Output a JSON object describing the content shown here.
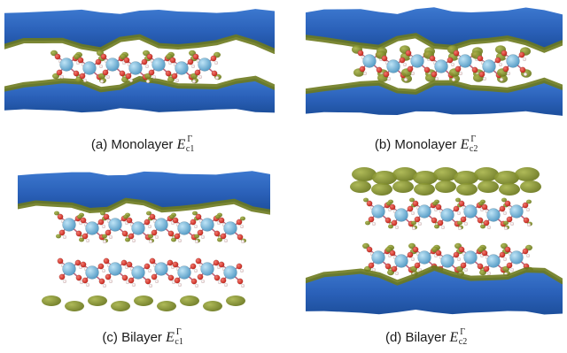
{
  "figure": {
    "panels": [
      {
        "id": "a",
        "label": "(a)",
        "system": "Monolayer",
        "symbol": "E",
        "subscript": "c1",
        "superscript": "Γ"
      },
      {
        "id": "b",
        "label": "(b)",
        "system": "Monolayer",
        "symbol": "E",
        "subscript": "c2",
        "superscript": "Γ"
      },
      {
        "id": "c",
        "label": "(c)",
        "system": "Bilayer",
        "symbol": "E",
        "subscript": "c1",
        "superscript": "Γ"
      },
      {
        "id": "d",
        "label": "(d)",
        "system": "Bilayer",
        "symbol": "E",
        "subscript": "c2",
        "superscript": "Γ"
      }
    ],
    "colors": {
      "isosurface_blue": "#2a60b8",
      "isosurface_olive": "#6d7a1e",
      "atom_metal": "#5a9fc8",
      "atom_oxygen": "#c8281e",
      "atom_hydrogen": "#f1d6d6"
    }
  }
}
